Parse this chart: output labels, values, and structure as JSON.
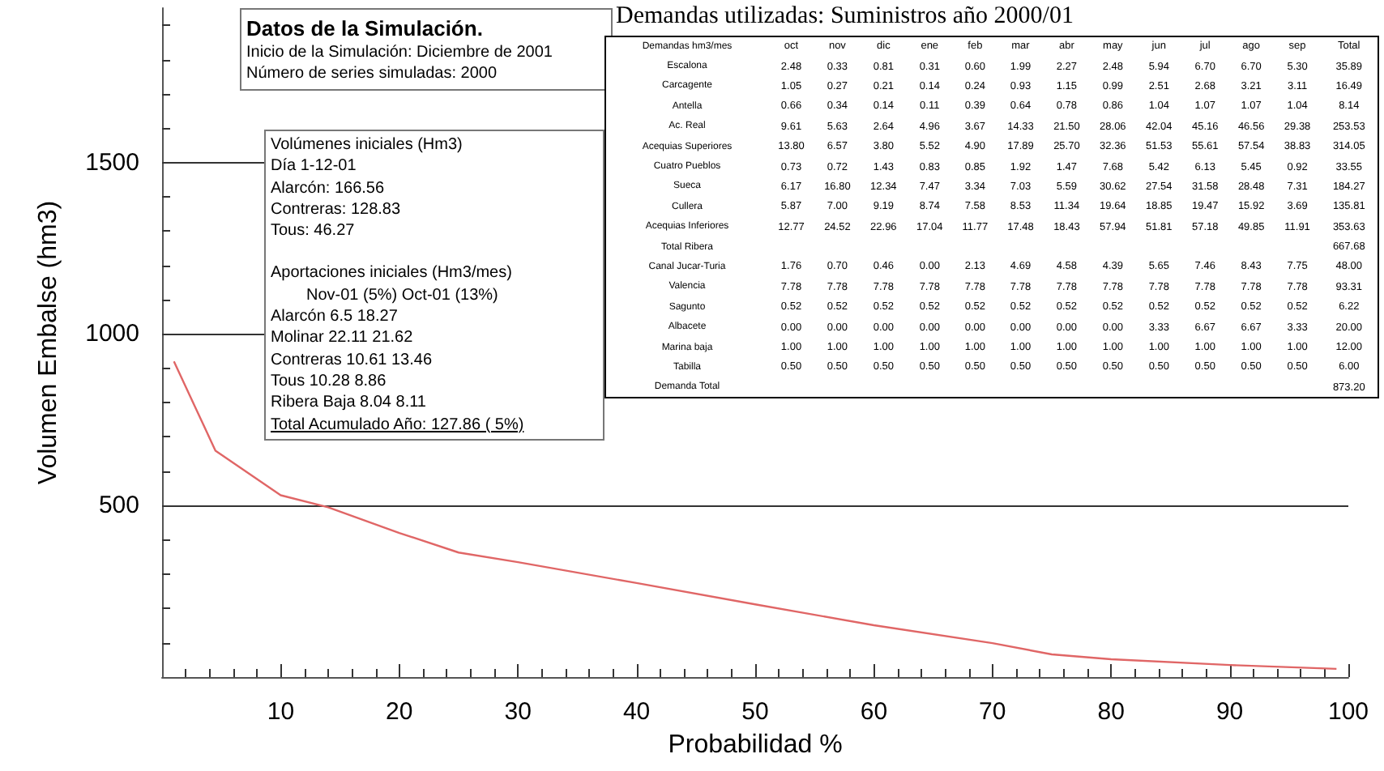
{
  "chart_data": {
    "type": "line",
    "xlabel": "Probabilidad %",
    "ylabel": "Volumen Embalse (hm3)",
    "x": [
      1,
      4.5,
      10,
      14,
      20,
      25,
      30,
      40,
      50,
      60,
      70,
      75,
      80,
      90,
      99
    ],
    "series": [
      {
        "color": "#e06666",
        "values": [
          920,
          660,
          530,
          495,
          420,
          363,
          335,
          274,
          212,
          151,
          99,
          66,
          52,
          35,
          24
        ]
      }
    ],
    "xlim": [
      0,
      100
    ],
    "xticks": [
      {
        "value": 2,
        "label": null
      },
      {
        "value": 4,
        "label": null
      },
      {
        "value": 6,
        "label": null
      },
      {
        "value": 8,
        "label": null
      },
      10,
      {
        "value": 12,
        "label": null
      },
      {
        "value": 14,
        "label": null
      },
      {
        "value": 16,
        "label": null
      },
      {
        "value": 18,
        "label": null
      },
      20,
      {
        "value": 22,
        "label": null
      },
      {
        "value": 24,
        "label": null
      },
      {
        "value": 26,
        "label": null
      },
      {
        "value": 28,
        "label": null
      },
      30,
      {
        "value": 32,
        "label": null
      },
      {
        "value": 34,
        "label": null
      },
      {
        "value": 36,
        "label": null
      },
      {
        "value": 38,
        "label": null
      },
      40,
      {
        "value": 42,
        "label": null
      },
      {
        "value": 44,
        "label": null
      },
      {
        "value": 46,
        "label": null
      },
      {
        "value": 48,
        "label": null
      },
      50,
      {
        "value": 52,
        "label": null
      },
      {
        "value": 54,
        "label": null
      },
      {
        "value": 56,
        "label": null
      },
      {
        "value": 58,
        "label": null
      },
      60,
      {
        "value": 62,
        "label": null
      },
      {
        "value": 64,
        "label": null
      },
      {
        "value": 66,
        "label": null
      },
      {
        "value": 68,
        "label": null
      },
      70,
      {
        "value": 72,
        "label": null
      },
      {
        "value": 74,
        "label": null
      },
      {
        "value": 76,
        "label": null
      },
      {
        "value": 78,
        "label": null
      },
      80,
      {
        "value": 82,
        "label": null
      },
      {
        "value": 84,
        "label": null
      },
      {
        "value": 86,
        "label": null
      },
      {
        "value": 88,
        "label": null
      },
      90,
      {
        "value": 92,
        "label": null
      },
      {
        "value": 94,
        "label": null
      },
      {
        "value": 96,
        "label": null
      },
      {
        "value": 98,
        "label": null
      },
      100
    ],
    "ylim": [
      0,
      1950
    ],
    "yticks": [
      {
        "value": 100,
        "label": null
      },
      {
        "value": 200,
        "label": null
      },
      {
        "value": 300,
        "label": null
      },
      {
        "value": 400,
        "label": null
      },
      500,
      {
        "value": 600,
        "label": null
      },
      {
        "value": 700,
        "label": null
      },
      {
        "value": 800,
        "label": null
      },
      {
        "value": 900,
        "label": null
      },
      1000,
      {
        "value": 1100,
        "label": null
      },
      {
        "value": 1200,
        "label": null
      },
      {
        "value": 1300,
        "label": null
      },
      {
        "value": 1400,
        "label": null
      },
      1500,
      {
        "value": 1600,
        "label": null
      },
      {
        "value": 1700,
        "label": null
      },
      {
        "value": 1800,
        "label": null
      },
      {
        "value": 1900,
        "label": null
      }
    ],
    "grid": "y",
    "marker": "none",
    "line_style": "solid",
    "annotations": [
      "Datos de la Simulación.",
      "Inicio de la Simulación: Diciembre de 2001",
      "Número de series simuladas: 2000",
      "Volúmenes iniciales (Hm3)",
      "Día 1-12-01",
      "Alarcón: 166.56",
      "Contreras: 128.83",
      "Tous: 46.27",
      "Aportaciones iniciales (Hm3/mes)",
      "Nov-01 (5%) Oct-01 (13%)",
      "Alarcón 6.5 18.27",
      "Molinar 22.11 21.62",
      "Contreras 10.61 13.46",
      "Tous 10.28 8.86",
      "Ribera Baja 8.04 8.11",
      "Total Acumulado Año: 127.86 ( 5%)",
      "Demandas utilizadas: Suministros año 2000/01",
      "Demandas hm3/mes oct nov dic ene feb mar abr may jun jul ago sep Total",
      "Escalona 2.48 0.33 0.81 0.31 0.60 1.99 2.27 2.48 5.94 6.70 6.70 5.30 35.89",
      "Carcagente 1.05 0.27 0.21 0.14 0.24 0.93 1.15 0.99 2.51 2.68 3.21 3.11 16.49",
      "Antella 0.66 0.34 0.14 0.11 0.39 0.64 0.78 0.86 1.04 1.07 1.07 1.04 8.14",
      "Ac. Real 9.61 5.63 2.64 4.96 3.67 14.33 21.50 28.06 42.04 45.16 46.56 29.38 253.53",
      "Acequias Superiores 13.80 6.57 3.80 5.52 4.90 17.89 25.70 32.36 51.53 55.61 57.54 38.83 314.05",
      "Cuatro Pueblos 0.73 0.72 1.43 0.83 0.85 1.92 1.47 7.68 5.42 6.13 5.45 0.92 33.55",
      "Sueca 6.17 16.80 12.34 7.47 3.34 7.03 5.59 30.62 27.54 31.58 28.48 7.31 184.27",
      "Cullera 5.87 7.00 9.19 8.74 7.58 8.53 11.34 19.64 18.85 19.47 15.92 3.69 135.81",
      "Acequias Inferiores 12.77 24.52 22.96 17.04 11.77 17.48 18.43 57.94 51.81 57.18 49.85 11.91 353.63",
      "Total Ribera 667.68",
      "Canal Jucar-Turia 1.76 0.70 0.46 0.00 2.13 4.69 4.58 4.39 5.65 7.46 8.43 7.75 48.00",
      "Valencia 7.78 7.78 7.78 7.78 7.78 7.78 7.78 7.78 7.78 7.78 7.78 7.78 93.31",
      "Sagunto 0.52 0.52 0.52 0.52 0.52 0.52 0.52 0.52 0.52 0.52 0.52 0.52 6.22",
      "Albacete 0.00 0.00 0.00 0.00 0.00 0.00 0.00 0.00 3.33 6.67 6.67 3.33 20.00",
      "Marina baja 1.00 1.00 1.00 1.00 1.00 1.00 1.00 1.00 1.00 1.00 1.00 1.00 12.00",
      "Tabilla 0.50 0.50 0.50 0.50 0.50 0.50 0.50 0.50 0.50 0.50 0.50 0.50 6.00",
      "Demanda Total 873.20"
    ]
  }
}
